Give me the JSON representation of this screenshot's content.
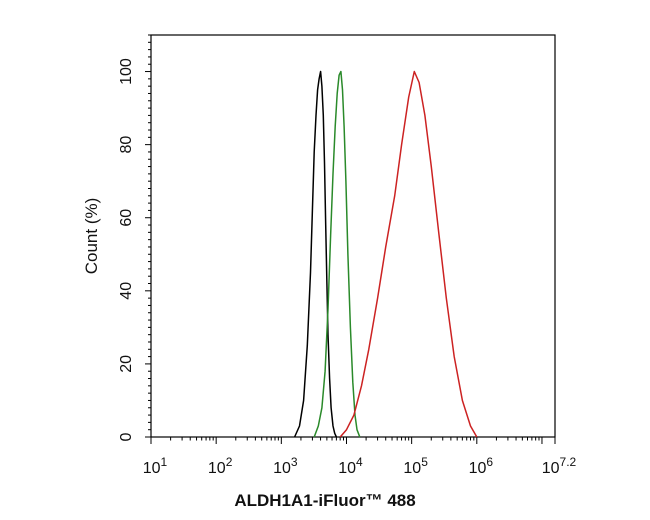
{
  "chart_data": {
    "type": "line",
    "title": "",
    "xlabel": "ALDH1A1-iFluor™ 488",
    "ylabel": "Count  (%)",
    "x_scale": "log",
    "xlim": [
      10,
      15848932
    ],
    "ylim": [
      0,
      110
    ],
    "grid": false,
    "legend": "none",
    "x_tick_labels": [
      {
        "base": "10",
        "exp": "1",
        "value": 10
      },
      {
        "base": "10",
        "exp": "2",
        "value": 100
      },
      {
        "base": "10",
        "exp": "3",
        "value": 1000
      },
      {
        "base": "10",
        "exp": "4",
        "value": 10000
      },
      {
        "base": "10",
        "exp": "5",
        "value": 100000
      },
      {
        "base": "10",
        "exp": "6",
        "value": 1000000
      },
      {
        "base": "10",
        "exp": "7.2",
        "value": 15848932
      }
    ],
    "y_ticks": [
      0,
      20,
      40,
      60,
      80,
      100
    ],
    "y_tick_labels": [
      "0",
      "20",
      "40",
      "60",
      "80",
      "100"
    ],
    "series": [
      {
        "color": "#000000",
        "x": [
          1600,
          1900,
          2200,
          2500,
          2800,
          3000,
          3200,
          3400,
          3600,
          3800,
          4000,
          4200,
          4400,
          4600,
          4800,
          5000,
          5200,
          5500,
          5800,
          6200,
          6600,
          7000
        ],
        "y": [
          0,
          3,
          10,
          25,
          45,
          62,
          78,
          88,
          95,
          98,
          100,
          96,
          88,
          75,
          58,
          42,
          28,
          16,
          8,
          3,
          1,
          0
        ]
      },
      {
        "color": "#2a8a2a",
        "x": [
          3200,
          3700,
          4200,
          4700,
          5200,
          5700,
          6200,
          6700,
          7200,
          7700,
          8200,
          8700,
          9200,
          9800,
          10500,
          11500,
          12500,
          13500,
          14500,
          16000
        ],
        "y": [
          0,
          3,
          8,
          18,
          35,
          55,
          72,
          85,
          94,
          99,
          100,
          95,
          85,
          70,
          50,
          30,
          15,
          6,
          2,
          0
        ]
      },
      {
        "color": "#cc2222",
        "x": [
          8000,
          10000,
          13000,
          17000,
          22000,
          30000,
          40000,
          55000,
          70000,
          90000,
          110000,
          130000,
          160000,
          200000,
          260000,
          340000,
          450000,
          600000,
          800000,
          1000000
        ],
        "y": [
          0,
          2,
          6,
          14,
          24,
          38,
          52,
          66,
          80,
          93,
          100,
          97,
          88,
          74,
          56,
          38,
          22,
          10,
          3,
          0
        ]
      }
    ]
  }
}
